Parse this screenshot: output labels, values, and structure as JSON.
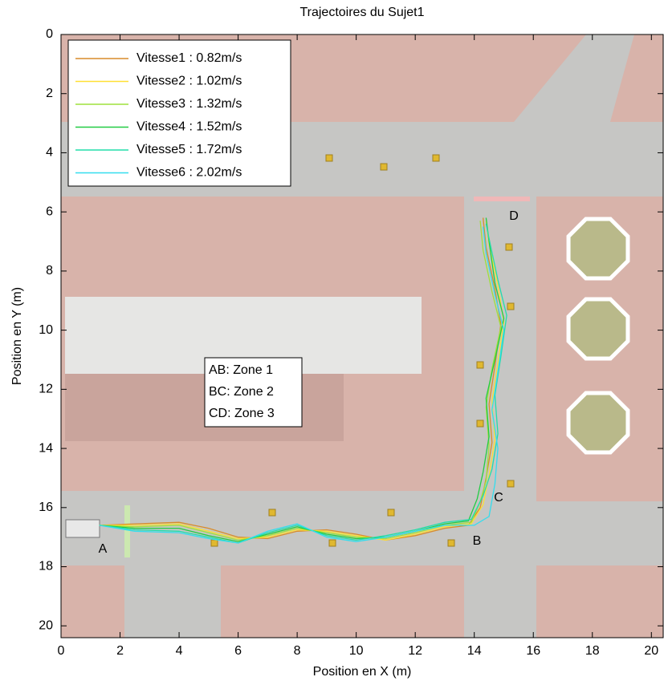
{
  "chart_data": {
    "type": "line",
    "title": "Trajectoires du Sujet1",
    "x_label": "Position en X (m)",
    "y_label": "Position en Y (m)",
    "xlim": [
      0,
      20.4
    ],
    "ylim": [
      20.4,
      0
    ],
    "xticks": [
      0,
      2,
      4,
      6,
      8,
      10,
      12,
      14,
      16,
      18,
      20
    ],
    "yticks": [
      0,
      2,
      4,
      6,
      8,
      10,
      12,
      14,
      16,
      18,
      20
    ],
    "legend": "upper left",
    "series": [
      {
        "name": "Vitesse1 : 0.82m/s",
        "color": "#d98c2a",
        "x": [
          1.3,
          2.5,
          4,
          5,
          6,
          7,
          8,
          9,
          10,
          11,
          12,
          13,
          13.8,
          14.2,
          14.4,
          14.6,
          14.5,
          14.7,
          14.9,
          14.7,
          14.4,
          14.3
        ],
        "values": [
          16.6,
          16.55,
          16.5,
          16.7,
          17.0,
          17.05,
          16.8,
          16.75,
          16.9,
          17.1,
          16.95,
          16.7,
          16.6,
          16.0,
          15.0,
          13.8,
          12.5,
          11.2,
          9.8,
          8.6,
          7.2,
          6.2
        ]
      },
      {
        "name": "Vitesse2 : 1.02m/s",
        "color": "#ffe033",
        "x": [
          1.3,
          2.5,
          4,
          5,
          6,
          7,
          8,
          9,
          10,
          11,
          12,
          13,
          13.9,
          14.3,
          14.5,
          14.7,
          14.6,
          14.8,
          15.0,
          14.8,
          14.5,
          14.4
        ],
        "values": [
          16.6,
          16.6,
          16.55,
          16.8,
          17.05,
          17.0,
          16.75,
          16.8,
          16.95,
          17.1,
          16.9,
          16.65,
          16.55,
          15.9,
          14.9,
          13.7,
          12.4,
          11.1,
          9.7,
          8.5,
          7.1,
          6.3
        ]
      },
      {
        "name": "Vitesse3 : 1.32m/s",
        "color": "#9ee03c",
        "x": [
          1.3,
          2.5,
          4,
          5,
          6,
          7,
          8,
          9,
          10,
          11,
          12,
          13,
          13.9,
          14.2,
          14.4,
          14.5,
          14.4,
          14.6,
          14.9,
          14.6,
          14.3,
          14.2
        ],
        "values": [
          16.6,
          16.65,
          16.6,
          16.85,
          17.1,
          16.95,
          16.7,
          16.85,
          17.0,
          17.05,
          16.85,
          16.6,
          16.5,
          15.8,
          15.1,
          13.9,
          12.6,
          11.3,
          9.9,
          8.7,
          7.3,
          6.3
        ]
      },
      {
        "name": "Vitesse4 : 1.52m/s",
        "color": "#22cc44",
        "x": [
          1.3,
          2.5,
          4,
          5,
          6,
          7,
          8,
          9,
          10,
          11,
          12,
          13,
          13.8,
          14.1,
          14.3,
          14.5,
          14.4,
          14.7,
          15.0,
          14.7,
          14.5,
          14.4
        ],
        "values": [
          16.6,
          16.7,
          16.7,
          16.95,
          17.15,
          16.9,
          16.65,
          16.9,
          17.05,
          17.0,
          16.8,
          16.55,
          16.45,
          15.7,
          14.8,
          13.6,
          12.3,
          11.0,
          9.6,
          8.4,
          7.0,
          6.2
        ]
      },
      {
        "name": "Vitesse5 : 1.72m/s",
        "color": "#22ddaa",
        "x": [
          1.3,
          2.5,
          4,
          5,
          6,
          7,
          8,
          9,
          10,
          11,
          12,
          13,
          13.9,
          14.3,
          14.6,
          14.8,
          14.7,
          14.9,
          15.1,
          14.8,
          14.5,
          14.4
        ],
        "values": [
          16.6,
          16.75,
          16.8,
          17.0,
          17.2,
          16.85,
          16.6,
          16.95,
          17.1,
          16.95,
          16.75,
          16.5,
          16.4,
          15.6,
          14.7,
          13.5,
          12.2,
          10.9,
          9.5,
          8.3,
          6.9,
          6.4
        ]
      },
      {
        "name": "Vitesse6 : 2.02m/s",
        "color": "#33ddee",
        "x": [
          1.3,
          2.5,
          4,
          5,
          6,
          7,
          8,
          9,
          10,
          11,
          12,
          13,
          14.0,
          14.5,
          14.7,
          14.8,
          14.6,
          14.8,
          15.0,
          14.7,
          14.4,
          14.3
        ],
        "values": [
          16.6,
          16.8,
          16.85,
          17.05,
          17.2,
          16.8,
          16.55,
          17.0,
          17.15,
          17.0,
          16.8,
          16.6,
          16.6,
          16.3,
          15.2,
          14.0,
          12.7,
          11.4,
          10.0,
          8.8,
          7.4,
          6.5
        ]
      }
    ],
    "annotations": [
      "A",
      "B",
      "C",
      "D"
    ],
    "zone_box": [
      "AB: Zone 1",
      "BC: Zone 2",
      "CD: Zone 3"
    ]
  }
}
